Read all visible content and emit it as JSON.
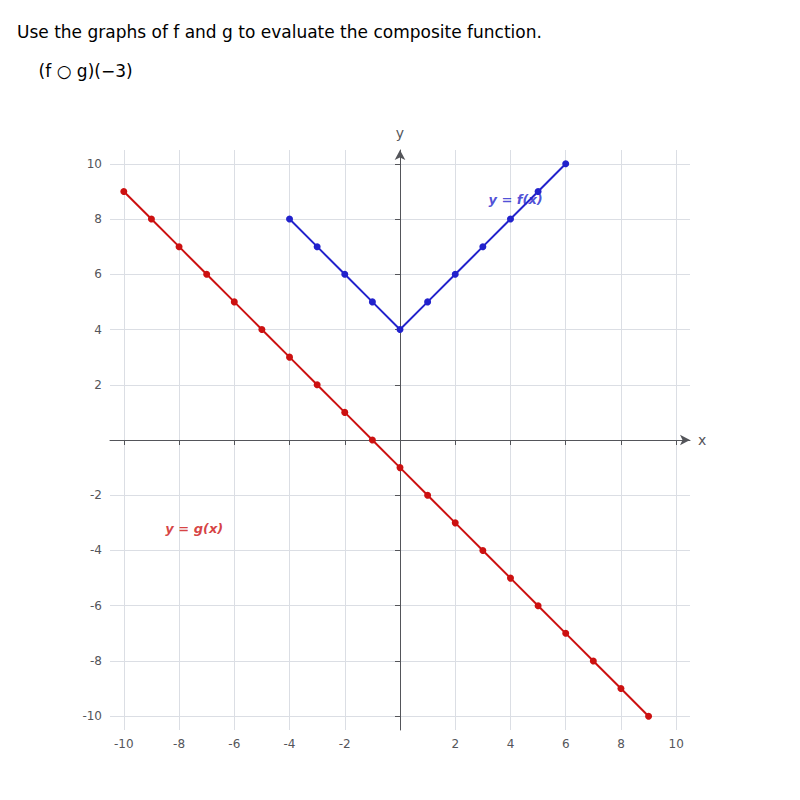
{
  "chart_data": {
    "type": "line",
    "title": "Use the graphs of f and g to evaluate the composite function.",
    "subtitle": "    (f ○ g)(−3)",
    "xlabel": "x",
    "ylabel": "y",
    "xlim": [
      -10.5,
      10.5
    ],
    "ylim": [
      -10.5,
      10.5
    ],
    "xticks": [
      -10,
      -8,
      -6,
      -4,
      -2,
      2,
      4,
      6,
      8,
      10
    ],
    "yticks": [
      -10,
      -8,
      -6,
      -4,
      -2,
      2,
      4,
      6,
      8,
      10
    ],
    "grid": true,
    "marker": "circle",
    "series": [
      {
        "color": "#2222cc",
        "x": [
          -4,
          -3,
          -2,
          -1,
          0,
          1,
          2,
          3,
          4,
          5,
          6
        ],
        "values": [
          8,
          7,
          6,
          5,
          4,
          5,
          6,
          7,
          8,
          9,
          10
        ]
      },
      {
        "color": "#cc1111",
        "x": [
          -10,
          -9,
          -8,
          -7,
          -6,
          -5,
          -4,
          -3,
          -2,
          -1,
          0,
          1,
          2,
          3,
          4,
          5,
          6,
          7,
          8,
          9
        ],
        "values": [
          9,
          8,
          7,
          6,
          5,
          4,
          3,
          2,
          1,
          0,
          -1,
          -2,
          -3,
          -4,
          -5,
          -6,
          -7,
          -8,
          -9,
          -10
        ]
      }
    ],
    "annotations": [
      {
        "text": "y = f(x)",
        "x": 3.2,
        "y": 8.7,
        "color": "#2222cc"
      },
      {
        "text": "y = g(x)",
        "x": -8.5,
        "y": -3.2,
        "color": "#cc1111"
      }
    ]
  }
}
